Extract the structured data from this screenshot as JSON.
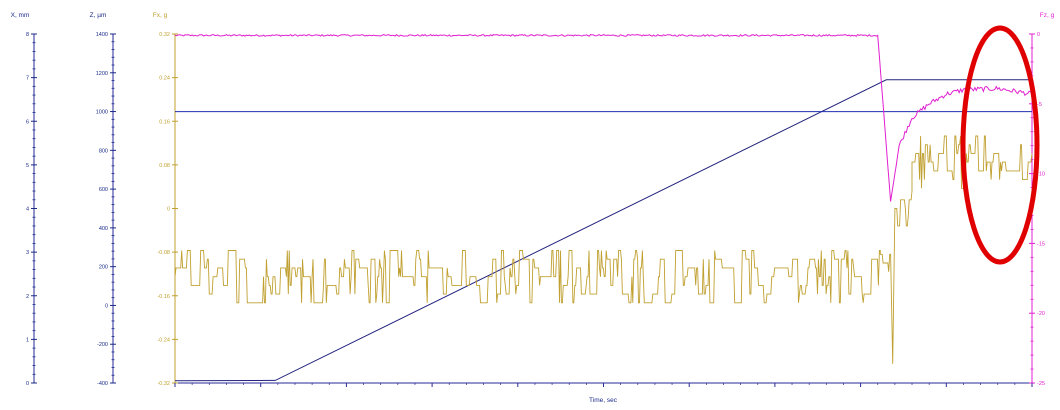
{
  "chart_data": {
    "type": "line",
    "xlabel": "Time, sec",
    "axes": [
      {
        "id": "x",
        "label": "X, mm",
        "color": "#1a2a8a",
        "ticks": [
          "8",
          "7",
          "6",
          "5",
          "4",
          "3",
          "2",
          "1",
          "0"
        ]
      },
      {
        "id": "z",
        "label": "Z, µm",
        "color": "#1a2a8a",
        "ticks": [
          "1400",
          "1200",
          "1000",
          "800",
          "600",
          "400",
          "200",
          "0",
          "-200",
          "-400"
        ]
      },
      {
        "id": "fx",
        "label": "Fx, g",
        "color": "#c0a030",
        "ticks": [
          "0.32",
          "0.24",
          "0.16",
          "0.08",
          "0",
          "-0.08",
          "-0.16",
          "-0.24",
          "-0.32"
        ]
      },
      {
        "id": "fz",
        "label": "Fz, g",
        "color": "#e020d0",
        "ticks": [
          "0",
          "-5",
          "-10",
          "-15",
          "-20",
          "-25"
        ]
      }
    ],
    "ranges": {
      "x_mm": [
        0,
        8
      ],
      "z_um": [
        -400,
        1400
      ],
      "fx_g": [
        -0.32,
        0.32
      ],
      "fz_g": [
        -25,
        0
      ],
      "time": [
        0,
        1
      ]
    },
    "series": [
      {
        "id": "x_position",
        "axis": "x_mm",
        "color": "#23237f",
        "points": [
          [
            0,
            0.05
          ],
          [
            0.117,
            0.06
          ],
          [
            0.83,
            6.95
          ],
          [
            1,
            6.95
          ]
        ]
      },
      {
        "id": "z_position",
        "axis": "z_um",
        "color": "#1f2fb0",
        "points": [
          [
            0,
            1000
          ],
          [
            1,
            1000
          ]
        ]
      },
      {
        "id": "fz_force",
        "axis": "fz_g",
        "color": "#e020d0",
        "points": [
          [
            0,
            -0.1
          ],
          [
            0.82,
            -0.1
          ],
          [
            0.835,
            -12.0
          ],
          [
            0.845,
            -8.0
          ],
          [
            0.86,
            -6.0
          ],
          [
            0.88,
            -5.0
          ],
          [
            0.9,
            -4.3
          ],
          [
            0.92,
            -4.0
          ],
          [
            0.96,
            -3.9
          ],
          [
            1,
            -4.3
          ]
        ]
      },
      {
        "id": "fx_force",
        "axis": "fx_g",
        "color": "#c0a030",
        "segments": [
          {
            "t": [
              0,
              0.823
            ],
            "base": -0.125,
            "step": 0.016,
            "noise": 0.055
          },
          {
            "t": [
              0.823,
              0.835
            ],
            "base": -0.1,
            "step": 0.016,
            "noise": 0.02
          },
          {
            "t": [
              0.835,
              0.84
            ],
            "spike_to": -0.285
          },
          {
            "t": [
              0.84,
              0.86
            ],
            "base": -0.0,
            "step": 0.016,
            "noise": 0.04
          },
          {
            "t": [
              0.86,
              1
            ],
            "base": 0.085,
            "step": 0.016,
            "noise": 0.045
          }
        ]
      }
    ],
    "annotations": [
      {
        "type": "ellipse",
        "color": "#e00000",
        "region": "right-end, Fz/Fx steady-state"
      }
    ],
    "grid": false
  }
}
